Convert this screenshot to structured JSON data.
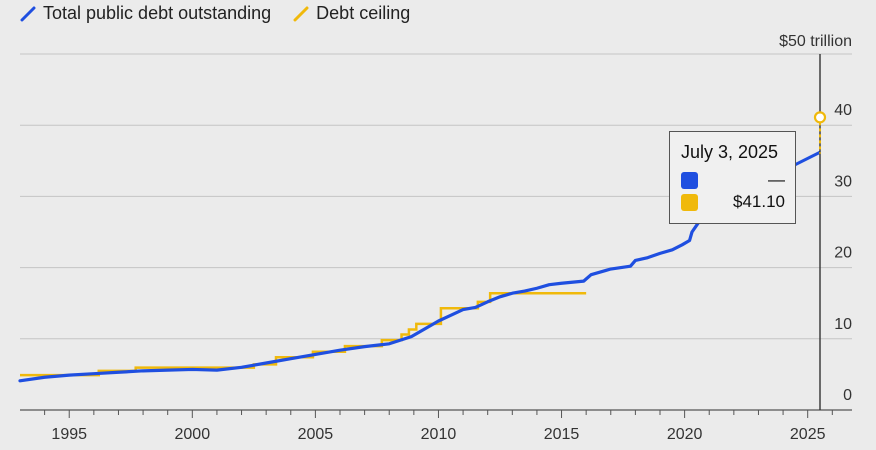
{
  "legend": {
    "debt_label": "Total public debt outstanding",
    "ceiling_label": "Debt ceiling"
  },
  "colors": {
    "debt": "#1f4fe0",
    "ceiling": "#f0b90b",
    "grid": "#c4c4c4",
    "axis": "#555555"
  },
  "tooltip": {
    "date": "July 3, 2025",
    "debt_value": "—",
    "ceiling_value": "$41.10"
  },
  "chart_data": {
    "type": "line",
    "x_unit": "year",
    "y_unit": "trillion dollars",
    "xlim": [
      1993.0,
      2026.8
    ],
    "ylim": [
      0,
      50
    ],
    "x_ticks": [
      {
        "value": 1995,
        "label": "1995"
      },
      {
        "value": 2000,
        "label": "2000"
      },
      {
        "value": 2005,
        "label": "2005"
      },
      {
        "value": 2010,
        "label": "2010"
      },
      {
        "value": 2015,
        "label": "2015"
      },
      {
        "value": 2020,
        "label": "2020"
      },
      {
        "value": 2025,
        "label": "2025"
      }
    ],
    "y_ticks": [
      {
        "value": 0,
        "label": "0"
      },
      {
        "value": 10,
        "label": "10"
      },
      {
        "value": 20,
        "label": "20"
      },
      {
        "value": 30,
        "label": "30"
      },
      {
        "value": 40,
        "label": "40"
      },
      {
        "value": 50,
        "label": "$50 trillion"
      }
    ],
    "grid": true,
    "legend_position": "top-left",
    "cursor_x": 2025.5,
    "series": [
      {
        "name": "Total public debt outstanding",
        "points": [
          [
            1993.0,
            4.1
          ],
          [
            1994.0,
            4.6
          ],
          [
            1995.0,
            4.9
          ],
          [
            1996.0,
            5.1
          ],
          [
            1997.0,
            5.3
          ],
          [
            1998.0,
            5.5
          ],
          [
            1999.0,
            5.6
          ],
          [
            2000.0,
            5.7
          ],
          [
            2001.0,
            5.6
          ],
          [
            2002.0,
            6.0
          ],
          [
            2003.0,
            6.6
          ],
          [
            2004.0,
            7.2
          ],
          [
            2005.0,
            7.8
          ],
          [
            2006.0,
            8.4
          ],
          [
            2007.0,
            8.9
          ],
          [
            2008.0,
            9.3
          ],
          [
            2008.9,
            10.3
          ],
          [
            2009.5,
            11.5
          ],
          [
            2010.0,
            12.5
          ],
          [
            2010.5,
            13.3
          ],
          [
            2011.0,
            14.1
          ],
          [
            2011.5,
            14.4
          ],
          [
            2012.0,
            15.2
          ],
          [
            2012.5,
            15.9
          ],
          [
            2013.0,
            16.4
          ],
          [
            2013.5,
            16.7
          ],
          [
            2014.0,
            17.1
          ],
          [
            2014.5,
            17.6
          ],
          [
            2015.0,
            17.8
          ],
          [
            2015.9,
            18.1
          ],
          [
            2016.2,
            19.0
          ],
          [
            2016.8,
            19.6
          ],
          [
            2017.0,
            19.8
          ],
          [
            2017.8,
            20.2
          ],
          [
            2018.0,
            21.0
          ],
          [
            2018.5,
            21.4
          ],
          [
            2019.0,
            22.0
          ],
          [
            2019.5,
            22.5
          ],
          [
            2019.9,
            23.2
          ],
          [
            2020.2,
            23.8
          ],
          [
            2020.3,
            25.0
          ],
          [
            2020.6,
            26.5
          ],
          [
            2020.9,
            27.0
          ]
        ]
      },
      {
        "name": "Debt ceiling",
        "points": [
          [
            1993.0,
            4.9
          ],
          [
            1996.2,
            5.5
          ],
          [
            1997.7,
            5.95
          ],
          [
            2002.5,
            6.4
          ],
          [
            2003.4,
            7.4
          ],
          [
            2004.9,
            8.18
          ],
          [
            2006.2,
            8.97
          ],
          [
            2007.7,
            9.82
          ],
          [
            2008.5,
            10.6
          ],
          [
            2008.8,
            11.3
          ],
          [
            2009.1,
            12.1
          ],
          [
            2010.1,
            14.29
          ],
          [
            2011.6,
            15.19
          ],
          [
            2012.1,
            16.39
          ]
        ]
      }
    ],
    "debt_tail": {
      "from": [
        2021.0,
        28.4
      ],
      "to": [
        2025.5,
        36.2
      ]
    },
    "ceiling_marker": {
      "x": 2025.5,
      "y": 41.1
    }
  }
}
